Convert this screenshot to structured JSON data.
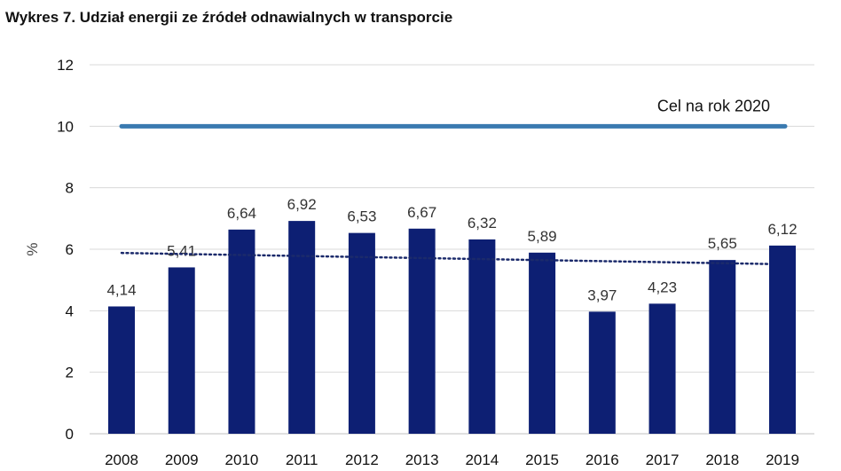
{
  "chart_data": {
    "type": "bar",
    "title": "Wykres 7. Udział energii ze źródeł odnawialnych w transporcie",
    "xlabel": "",
    "ylabel": "%",
    "categories": [
      "2008",
      "2009",
      "2010",
      "2011",
      "2012",
      "2013",
      "2014",
      "2015",
      "2016",
      "2017",
      "2018",
      "2019"
    ],
    "values": [
      4.14,
      5.41,
      6.64,
      6.92,
      6.53,
      6.67,
      6.32,
      5.89,
      3.97,
      4.23,
      5.65,
      6.12
    ],
    "value_labels": [
      "4,14",
      "5,41",
      "6,64",
      "6,92",
      "6,53",
      "6,67",
      "6,32",
      "5,89",
      "3,97",
      "4,23",
      "5,65",
      "6,12"
    ],
    "ylim": [
      0,
      12
    ],
    "yticks": [
      "0",
      "2",
      "4",
      "6",
      "8",
      "10",
      "12"
    ],
    "target": {
      "value": 10,
      "label": "Cel na rok 2020",
      "color": "#3a7ab0"
    },
    "trendline": {
      "style": "dotted",
      "start": 5.88,
      "end": 5.52,
      "color": "#1b2a6b"
    },
    "bar_color": "#0d1f73",
    "grid": true,
    "legend": "none"
  }
}
